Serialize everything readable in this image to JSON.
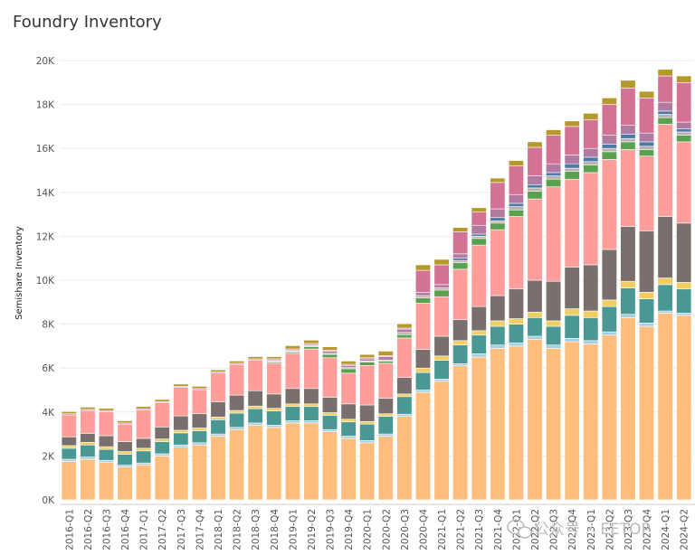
{
  "chart_data": {
    "type": "bar",
    "stacked": true,
    "title": "Foundry Inventory",
    "xlabel": "",
    "ylabel": "Semishare Inventory",
    "ylim": [
      0,
      20000
    ],
    "yticks": [
      0,
      2000,
      4000,
      6000,
      8000,
      10000,
      12000,
      14000,
      16000,
      18000,
      20000
    ],
    "ytick_labels": [
      "0K",
      "2K",
      "4K",
      "6K",
      "8K",
      "10K",
      "12K",
      "14K",
      "16K",
      "18K",
      "20K"
    ],
    "grid": true,
    "categories": [
      "2016-Q1",
      "2016-Q2",
      "2016-Q3",
      "2016-Q4",
      "2017-Q1",
      "2017-Q2",
      "2017-Q3",
      "2017-Q4",
      "2018-Q1",
      "2018-Q2",
      "2018-Q3",
      "2018-Q4",
      "2019-Q1",
      "2019-Q2",
      "2019-Q3",
      "2019-Q4",
      "2020-Q1",
      "2020-Q2",
      "2020-Q3",
      "2020-Q4",
      "2021-Q1",
      "2021-Q2",
      "2021-Q3",
      "2021-Q4",
      "2022-Q1",
      "2022-Q2",
      "2022-Q3",
      "2022-Q4",
      "2023-Q1",
      "2023-Q2",
      "2023-Q3",
      "2023-Q4",
      "2024-Q1",
      "2024-Q2"
    ],
    "series": [
      {
        "name": "orange",
        "color": "#ffbe7d",
        "values": [
          1750,
          1850,
          1700,
          1500,
          1600,
          2000,
          2400,
          2500,
          2900,
          3200,
          3400,
          3300,
          3500,
          3500,
          3100,
          2800,
          2600,
          2900,
          3800,
          4900,
          5400,
          6100,
          6500,
          6900,
          7000,
          7300,
          6900,
          7200,
          7100,
          7500,
          8300,
          7900,
          8500,
          8400
        ]
      },
      {
        "name": "light-blue",
        "color": "#a6cee3",
        "values": [
          100,
          100,
          100,
          80,
          80,
          100,
          100,
          100,
          100,
          100,
          100,
          100,
          100,
          100,
          100,
          100,
          100,
          100,
          100,
          100,
          100,
          100,
          150,
          150,
          150,
          150,
          150,
          150,
          150,
          150,
          150,
          150,
          100,
          100
        ]
      },
      {
        "name": "teal",
        "color": "#499894",
        "values": [
          500,
          550,
          500,
          500,
          550,
          550,
          550,
          550,
          650,
          650,
          650,
          650,
          650,
          650,
          650,
          650,
          750,
          800,
          800,
          800,
          850,
          850,
          850,
          850,
          850,
          850,
          850,
          1050,
          1050,
          1150,
          1200,
          1100,
          1200,
          1100
        ]
      },
      {
        "name": "yellow",
        "color": "#f1ce63",
        "values": [
          120,
          120,
          120,
          120,
          120,
          120,
          120,
          120,
          120,
          120,
          120,
          120,
          120,
          120,
          120,
          120,
          120,
          120,
          120,
          200,
          200,
          200,
          200,
          250,
          250,
          250,
          250,
          300,
          300,
          300,
          300,
          300,
          300,
          300
        ]
      },
      {
        "name": "grey-brown",
        "color": "#79706e",
        "values": [
          400,
          400,
          500,
          450,
          450,
          550,
          650,
          650,
          700,
          700,
          700,
          650,
          700,
          700,
          700,
          700,
          750,
          700,
          750,
          850,
          900,
          950,
          1100,
          1150,
          1350,
          1450,
          1800,
          1900,
          2100,
          2300,
          2500,
          2800,
          2800,
          2700
        ]
      },
      {
        "name": "pink",
        "color": "#ff9d9a",
        "values": [
          1000,
          1050,
          1100,
          800,
          1300,
          1100,
          1300,
          1100,
          1300,
          1400,
          1400,
          1400,
          1600,
          1800,
          1800,
          1400,
          1800,
          1600,
          1800,
          2100,
          1800,
          2300,
          2800,
          3000,
          3300,
          3700,
          4300,
          4000,
          4200,
          4100,
          3500,
          3400,
          4200,
          3700
        ]
      },
      {
        "name": "green",
        "color": "#59a14f",
        "values": [
          0,
          0,
          0,
          0,
          0,
          0,
          0,
          0,
          0,
          0,
          0,
          50,
          50,
          100,
          150,
          200,
          150,
          100,
          150,
          250,
          300,
          300,
          300,
          300,
          300,
          350,
          350,
          350,
          350,
          350,
          350,
          300,
          300,
          300
        ]
      },
      {
        "name": "light-grey",
        "color": "#bab0ac",
        "values": [
          0,
          0,
          0,
          0,
          0,
          0,
          0,
          0,
          0,
          0,
          0,
          50,
          50,
          50,
          50,
          50,
          50,
          50,
          100,
          100,
          100,
          100,
          100,
          100,
          150,
          150,
          150,
          150,
          150,
          150,
          150,
          150,
          150,
          150
        ]
      },
      {
        "name": "blue",
        "color": "#4e79a7",
        "values": [
          0,
          0,
          0,
          0,
          0,
          0,
          0,
          0,
          0,
          0,
          0,
          0,
          0,
          0,
          0,
          0,
          0,
          0,
          0,
          0,
          0,
          100,
          100,
          150,
          150,
          150,
          150,
          200,
          200,
          200,
          200,
          200,
          150,
          150
        ]
      },
      {
        "name": "lavender",
        "color": "#b07aa1",
        "values": [
          50,
          50,
          50,
          50,
          50,
          50,
          50,
          50,
          50,
          50,
          50,
          50,
          50,
          50,
          100,
          100,
          100,
          150,
          150,
          150,
          150,
          200,
          400,
          400,
          400,
          400,
          400,
          400,
          400,
          400,
          400,
          400,
          400,
          300
        ]
      },
      {
        "name": "magenta",
        "color": "#d37295",
        "values": [
          0,
          0,
          0,
          0,
          0,
          0,
          0,
          0,
          0,
          0,
          0,
          50,
          50,
          50,
          50,
          50,
          50,
          50,
          50,
          1000,
          900,
          1000,
          600,
          1200,
          1300,
          1300,
          1300,
          1300,
          1300,
          1400,
          1700,
          1600,
          1200,
          1800
        ]
      },
      {
        "name": "olive",
        "color": "#b6992d",
        "values": [
          100,
          100,
          100,
          100,
          100,
          100,
          100,
          100,
          100,
          100,
          100,
          100,
          150,
          150,
          150,
          150,
          150,
          200,
          200,
          250,
          250,
          200,
          200,
          200,
          250,
          250,
          250,
          250,
          300,
          300,
          350,
          300,
          300,
          300
        ]
      }
    ]
  },
  "watermark": {
    "prefix": "公众号",
    "separator": "·",
    "name": "EETOP"
  }
}
